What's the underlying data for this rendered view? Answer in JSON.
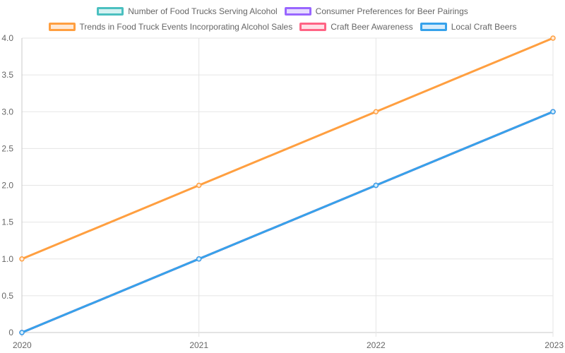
{
  "chart_data": {
    "type": "line",
    "categories": [
      "2020",
      "2021",
      "2022",
      "2023"
    ],
    "yticks": [
      "0",
      "0.5",
      "1.0",
      "1.5",
      "2.0",
      "2.5",
      "3.0",
      "3.5",
      "4.0"
    ],
    "ylim": [
      0,
      4
    ],
    "grid": true,
    "legend_position": "top",
    "series": [
      {
        "name": "Number of Food Trucks Serving Alcohol",
        "values": [
          0,
          1,
          2,
          3
        ],
        "color": "#4bc0c0",
        "fill": "#d5f2f2"
      },
      {
        "name": "Consumer Preferences for Beer Pairings",
        "values": [
          0,
          1,
          2,
          3
        ],
        "color": "#9966ff",
        "fill": "#e6dcff"
      },
      {
        "name": "Trends in Food Truck Events Incorporating Alcohol Sales",
        "values": [
          1,
          2,
          3,
          4
        ],
        "color": "#ff9f40",
        "fill": "#ffe9d5"
      },
      {
        "name": "Craft Beer Awareness",
        "values": [
          0,
          1,
          2,
          3
        ],
        "color": "#ff6384",
        "fill": "#ffe0e6"
      },
      {
        "name": "Local Craft Beers",
        "values": [
          0,
          1,
          2,
          3
        ],
        "color": "#36a2eb",
        "fill": "#d7ecfb"
      }
    ]
  }
}
